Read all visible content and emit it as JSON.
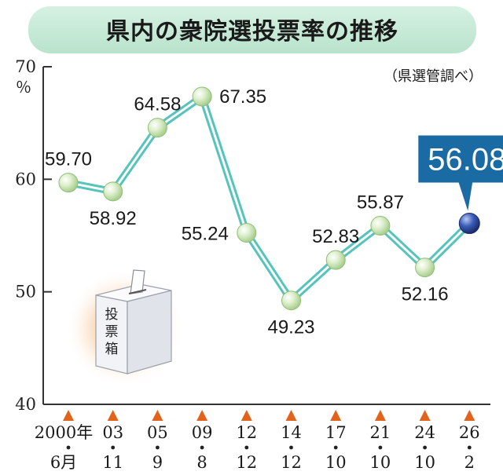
{
  "chart_data": {
    "type": "line",
    "title": "県内の衆院選投票率の推移",
    "source_note": "（県選管調べ）",
    "y_unit": "％",
    "ylim": [
      40,
      70
    ],
    "yticks": [
      "40",
      "50",
      "60",
      "70"
    ],
    "grid": false,
    "categories": [
      {
        "line1": "2000年",
        "line2": "6月"
      },
      {
        "line1": "03",
        "line2": "11"
      },
      {
        "line1": "05",
        "line2": "9"
      },
      {
        "line1": "09",
        "line2": "8"
      },
      {
        "line1": "12",
        "line2": "12"
      },
      {
        "line1": "14",
        "line2": "12"
      },
      {
        "line1": "17",
        "line2": "10"
      },
      {
        "line1": "21",
        "line2": "10"
      },
      {
        "line1": "24",
        "line2": "10"
      },
      {
        "line1": "26",
        "line2": "2"
      }
    ],
    "values": [
      59.7,
      58.92,
      64.58,
      67.35,
      55.24,
      49.23,
      52.83,
      55.87,
      52.16,
      56.08
    ],
    "value_labels": [
      "59.70",
      "58.92",
      "64.58",
      "67.35",
      "55.24",
      "49.23",
      "52.83",
      "55.87",
      "52.16",
      "56.08"
    ],
    "highlight_index": 9,
    "highlight_label": "56.08",
    "illustration_label": "投票箱",
    "colors": {
      "title_bg": "#c8ead8",
      "line": "#55c4bb",
      "marker": "#cfe8b8",
      "highlight_marker": "#2c4a9a",
      "highlight_box": "#1a6aa3",
      "tick_arrow": "#e2641c"
    }
  }
}
